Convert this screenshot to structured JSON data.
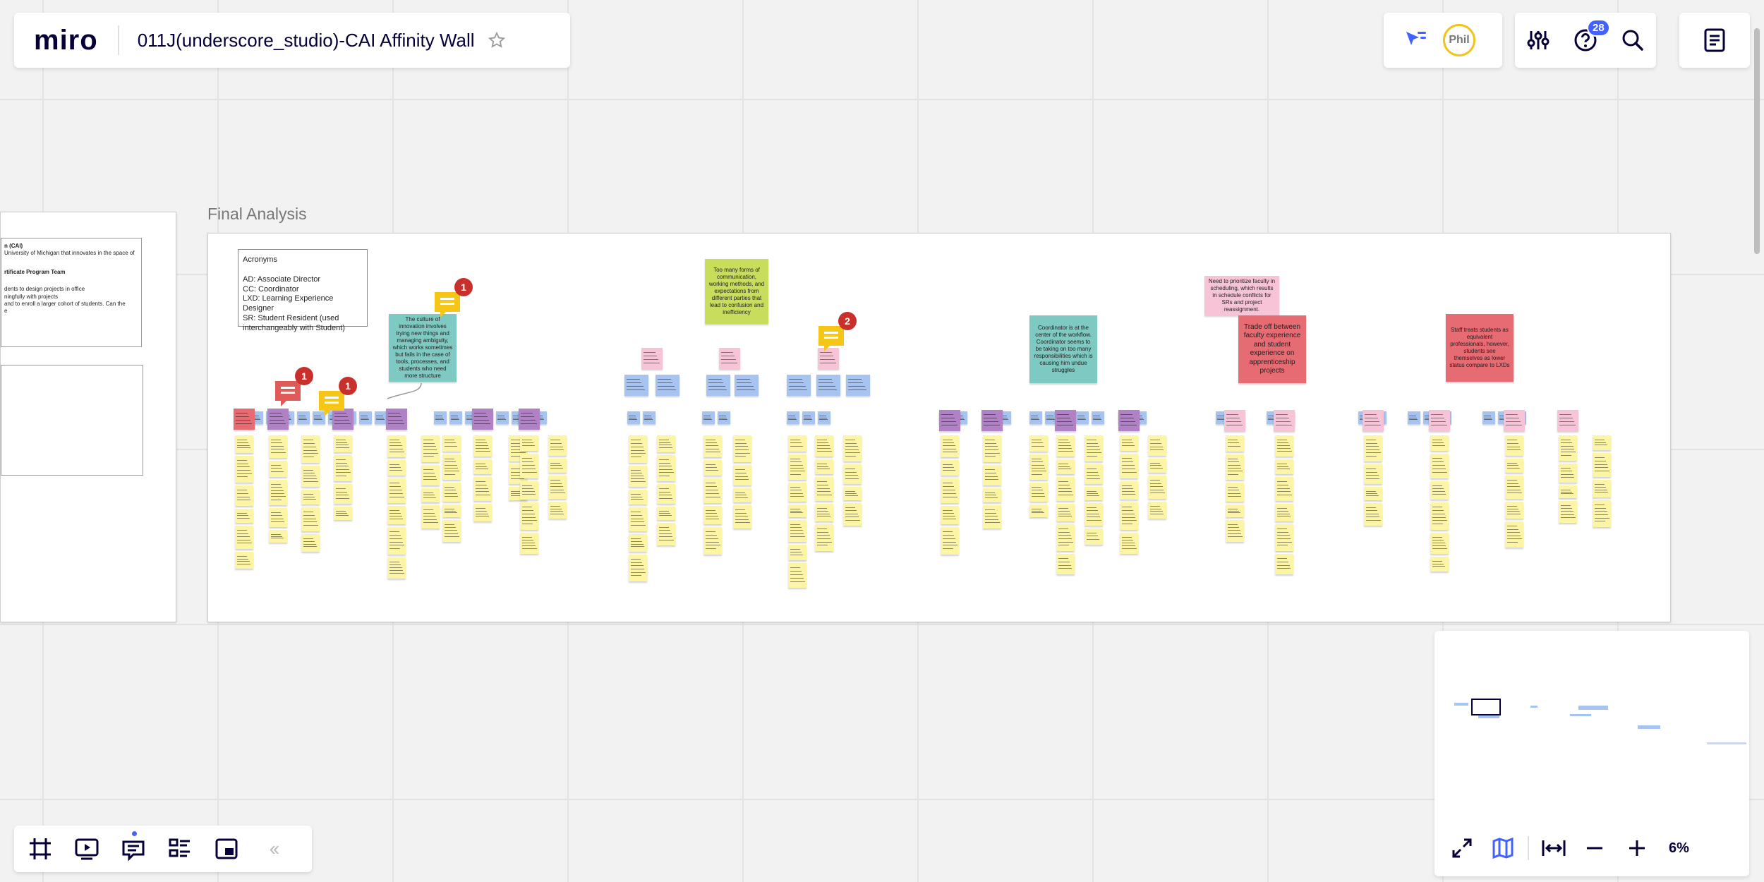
{
  "header": {
    "logo": "miro",
    "board_title": "011J(underscore_studio)-CAI Affinity Wall",
    "star_icon": "star-icon"
  },
  "collab": {
    "cursor_icon": "follow-cursor-icon",
    "avatar_label": "Phil",
    "avatar_color": "#f0c419"
  },
  "tools": {
    "notifications_count": "28",
    "badge_color": "#4262ff"
  },
  "left_frame": {
    "heading_fragment": "n (CAI)",
    "line1": "University of Michigan that innovates in the space of",
    "subheading": "rtificate Program Team",
    "line2": "dents to design projects in office",
    "line3": "ningfully with projects",
    "line4": "and to enroll a larger cohort of students. Can the",
    "line5": "e"
  },
  "frame": {
    "title": "Final Analysis"
  },
  "acronyms": {
    "title": "Acronyms",
    "l1": "AD: Associate Director",
    "l2": "CC: Coordinator",
    "l3": "LXD: Learning Experience Designer",
    "l4": "SR: Student Resident (used interchangeably with Student)"
  },
  "insights": {
    "innovation": "The culture of innovation involves trying new things and managing ambiguity, which works sometimes but fails in the case of tools, processes, and students who need more structure",
    "communication": "Too many forms of communication, working methods, and expectations from different parties that lead to confusion and inefficiency",
    "coordinator": "Coordinator is at the center of the workflow. Coordinator seems to be taking on too many responsibilities which is causing him undue struggles",
    "prioritize": "Need to prioritize faculty in scheduling, which results in schedule conflicts for SRs and project reassignment.",
    "tradeoff": "Trade off between faculty experience and student experience on apprenticeship projects",
    "staff": "Staff treats students as equivalent professionals, however, students see themselves as lower status compare to LXDs"
  },
  "comments": {
    "c1": "1",
    "c2": "1",
    "c3": "1",
    "c4": "2",
    "red": "#c9302c",
    "yellow": "#f5c518",
    "red_bubble": "#e05a5a"
  },
  "colors": {
    "yellow_sticky": "#fdf5a6",
    "blue_sticky": "#a7c4f0",
    "purple_sticky": "#b081c4",
    "pink_sticky": "#f6c4d6",
    "teal_sticky": "#7ec9c2",
    "green_sticky": "#c9dd5c",
    "red_sticky": "#e66b73",
    "accent": "#4262ff"
  },
  "zoom": {
    "level": "6%"
  },
  "bottom_toolbar": {
    "frames_icon": "frames-icon",
    "present_icon": "presentation-icon",
    "comments_icon": "comments-icon",
    "list_icon": "list-view-icon",
    "board_icon": "embed-board-icon",
    "collapse_icon": "collapse-chevron-icon"
  }
}
